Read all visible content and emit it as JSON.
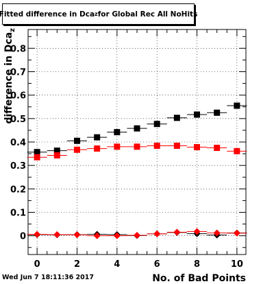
{
  "page": {
    "timestamp": "Wed Jun  7 18:11:36 2017",
    "title": {
      "prefix": "Fitted difference in Dca",
      "subscript": "z",
      "suffix": " for Global Rec All NoHits"
    }
  },
  "chart_data": {
    "type": "scatter",
    "title": "Fitted difference in Dca_z for Global Rec All NoHits",
    "xlabel": "No. of Bad Points",
    "ylabel": "difference in Dca_z",
    "ylabel_prefix": "difference in Dca",
    "ylabel_subscript": "z",
    "xlim": [
      -0.45,
      10.45
    ],
    "ylim": [
      -0.08,
      0.88
    ],
    "x_ticks": [
      0,
      2,
      4,
      6,
      8,
      10
    ],
    "y_ticks": [
      0,
      0.1,
      0.2,
      0.3,
      0.4,
      0.5,
      0.6,
      0.7,
      0.8
    ],
    "grid": true,
    "x": [
      0,
      1,
      2,
      3,
      4,
      5,
      6,
      7,
      8,
      9,
      10
    ],
    "series": [
      {
        "marker": "square",
        "color": "#000000",
        "values": [
          0.357,
          0.363,
          0.405,
          0.42,
          0.442,
          0.458,
          0.477,
          0.503,
          0.517,
          0.525,
          0.555
        ]
      },
      {
        "marker": "square",
        "color": "#ff0000",
        "values": [
          0.335,
          0.343,
          0.367,
          0.372,
          0.38,
          0.38,
          0.384,
          0.384,
          0.378,
          0.375,
          0.361
        ]
      },
      {
        "marker": "diamond",
        "color": "#000000",
        "values": [
          0.005,
          0.004,
          0.005,
          0.006,
          0.005,
          0.001,
          0.008,
          0.014,
          0.009,
          0.003,
          0.012
        ]
      },
      {
        "marker": "diamond",
        "color": "#ff0000",
        "values": [
          0.006,
          0.005,
          0.004,
          0.0,
          0.0,
          0.002,
          0.008,
          0.015,
          0.018,
          0.012,
          0.011
        ]
      }
    ]
  }
}
